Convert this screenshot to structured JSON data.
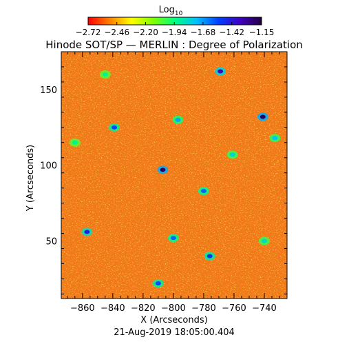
{
  "chart_data": {
    "type": "heatmap",
    "title": "Hinode SOT/SP — MERLIN : Degree of Polarization",
    "timestamp": "21-Aug-2019 18:05:00.404",
    "xlabel": "X (Arcseconds)",
    "ylabel": "Y (Arcseconds)",
    "xlim": [
      -874,
      -725
    ],
    "ylim": [
      12,
      175
    ],
    "xticks": [
      -860,
      -840,
      -820,
      -800,
      -780,
      -760,
      -740
    ],
    "yticks": [
      50,
      100,
      150
    ],
    "colorbar": {
      "label": "Log",
      "label_subscript": "10",
      "min": -2.72,
      "max": -1.15,
      "tick_values": [
        -2.72,
        -2.46,
        -2.2,
        -1.94,
        -1.68,
        -1.42,
        -1.15
      ],
      "tick_labels": [
        "−2.72",
        "−2.46",
        "−2.20",
        "−1.94",
        "−1.68",
        "−1.42",
        "−1.15"
      ],
      "colormap": [
        "#ff0000",
        "#ff8000",
        "#ffff00",
        "#80ff00",
        "#00ff80",
        "#00c0ff",
        "#0040ff",
        "#4000c0",
        "#200040"
      ]
    },
    "background_value_range": [
      -2.72,
      -2.38
    ],
    "features": [
      {
        "x": -807,
        "y": 97,
        "value": -1.2
      },
      {
        "x": -741,
        "y": 132,
        "value": -1.2
      },
      {
        "x": -769,
        "y": 162,
        "value": -1.35
      },
      {
        "x": -857,
        "y": 56,
        "value": -1.45
      },
      {
        "x": -780,
        "y": 83,
        "value": -1.6
      },
      {
        "x": -800,
        "y": 52,
        "value": -1.6
      },
      {
        "x": -839,
        "y": 125,
        "value": -1.55
      },
      {
        "x": -797,
        "y": 130,
        "value": -1.7
      },
      {
        "x": -776,
        "y": 40,
        "value": -1.5
      },
      {
        "x": -810,
        "y": 22,
        "value": -1.55
      },
      {
        "x": -761,
        "y": 107,
        "value": -1.8
      },
      {
        "x": -845,
        "y": 160,
        "value": -1.9
      },
      {
        "x": -733,
        "y": 118,
        "value": -1.75
      },
      {
        "x": -740,
        "y": 50,
        "value": -1.8
      },
      {
        "x": -865,
        "y": 115,
        "value": -1.9
      }
    ]
  }
}
